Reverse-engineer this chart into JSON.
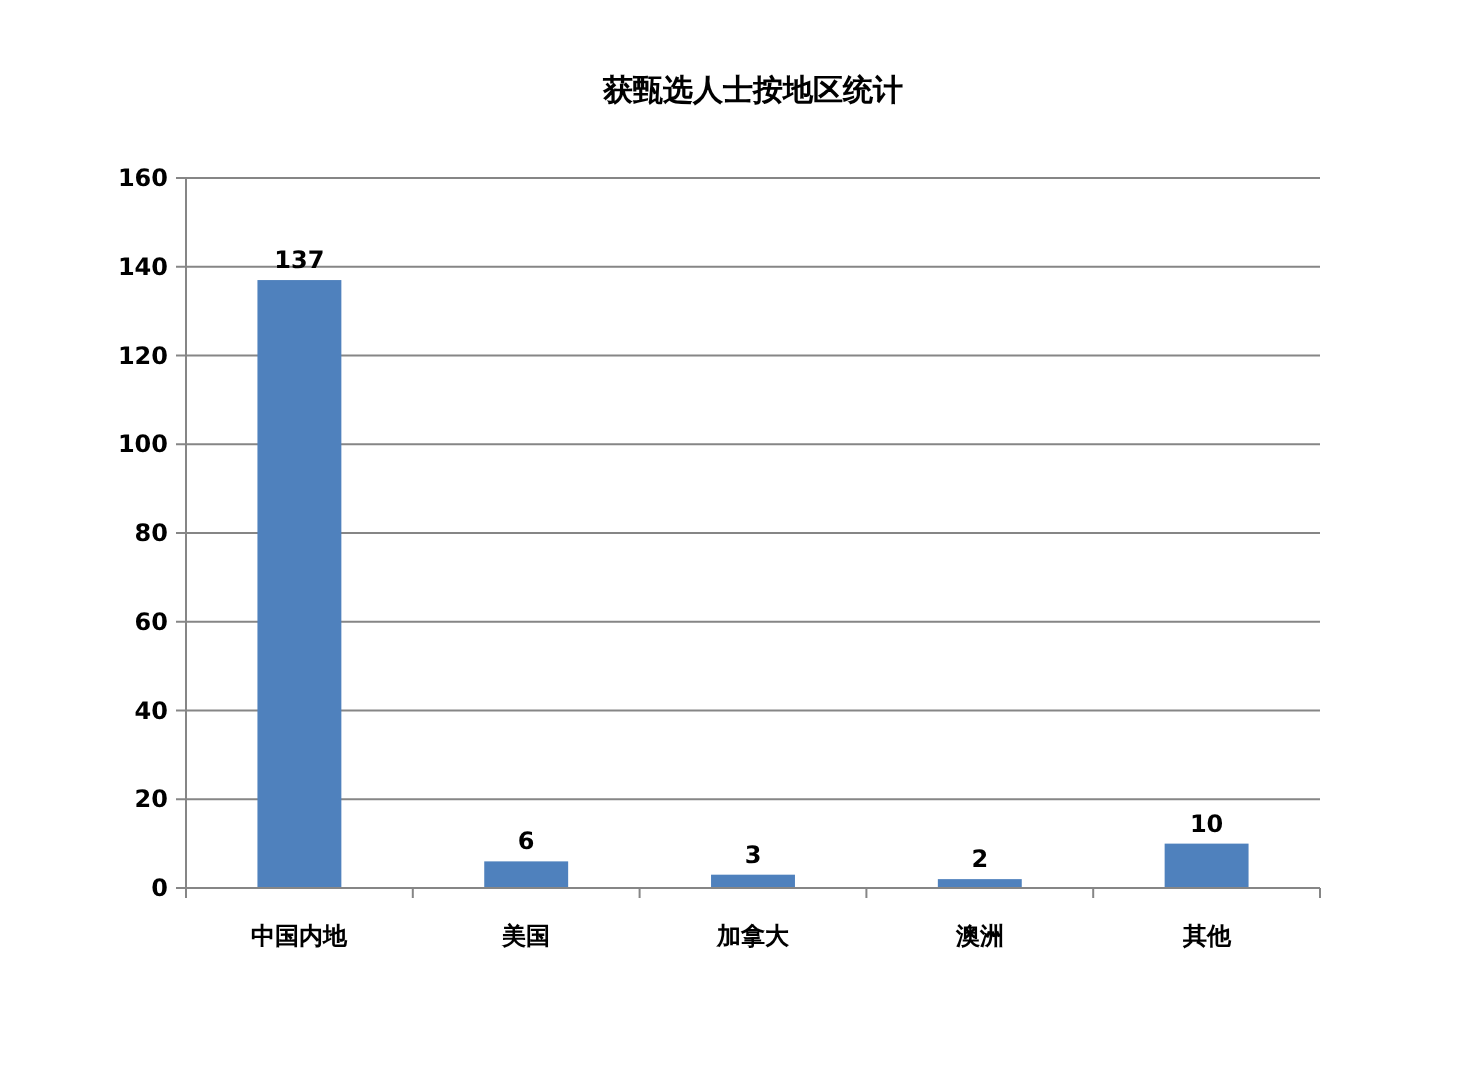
{
  "chart_data": {
    "type": "bar",
    "title": "获甄选人士按地区统计",
    "categories": [
      "中国内地",
      "美国",
      "加拿大",
      "澳洲",
      "其他"
    ],
    "values": [
      137,
      6,
      3,
      2,
      10
    ],
    "color": "#4f81bd",
    "ylim": [
      0,
      160
    ],
    "yticks": [
      0,
      20,
      40,
      60,
      80,
      100,
      120,
      140,
      160
    ],
    "grid": "y",
    "data_labels": true
  }
}
